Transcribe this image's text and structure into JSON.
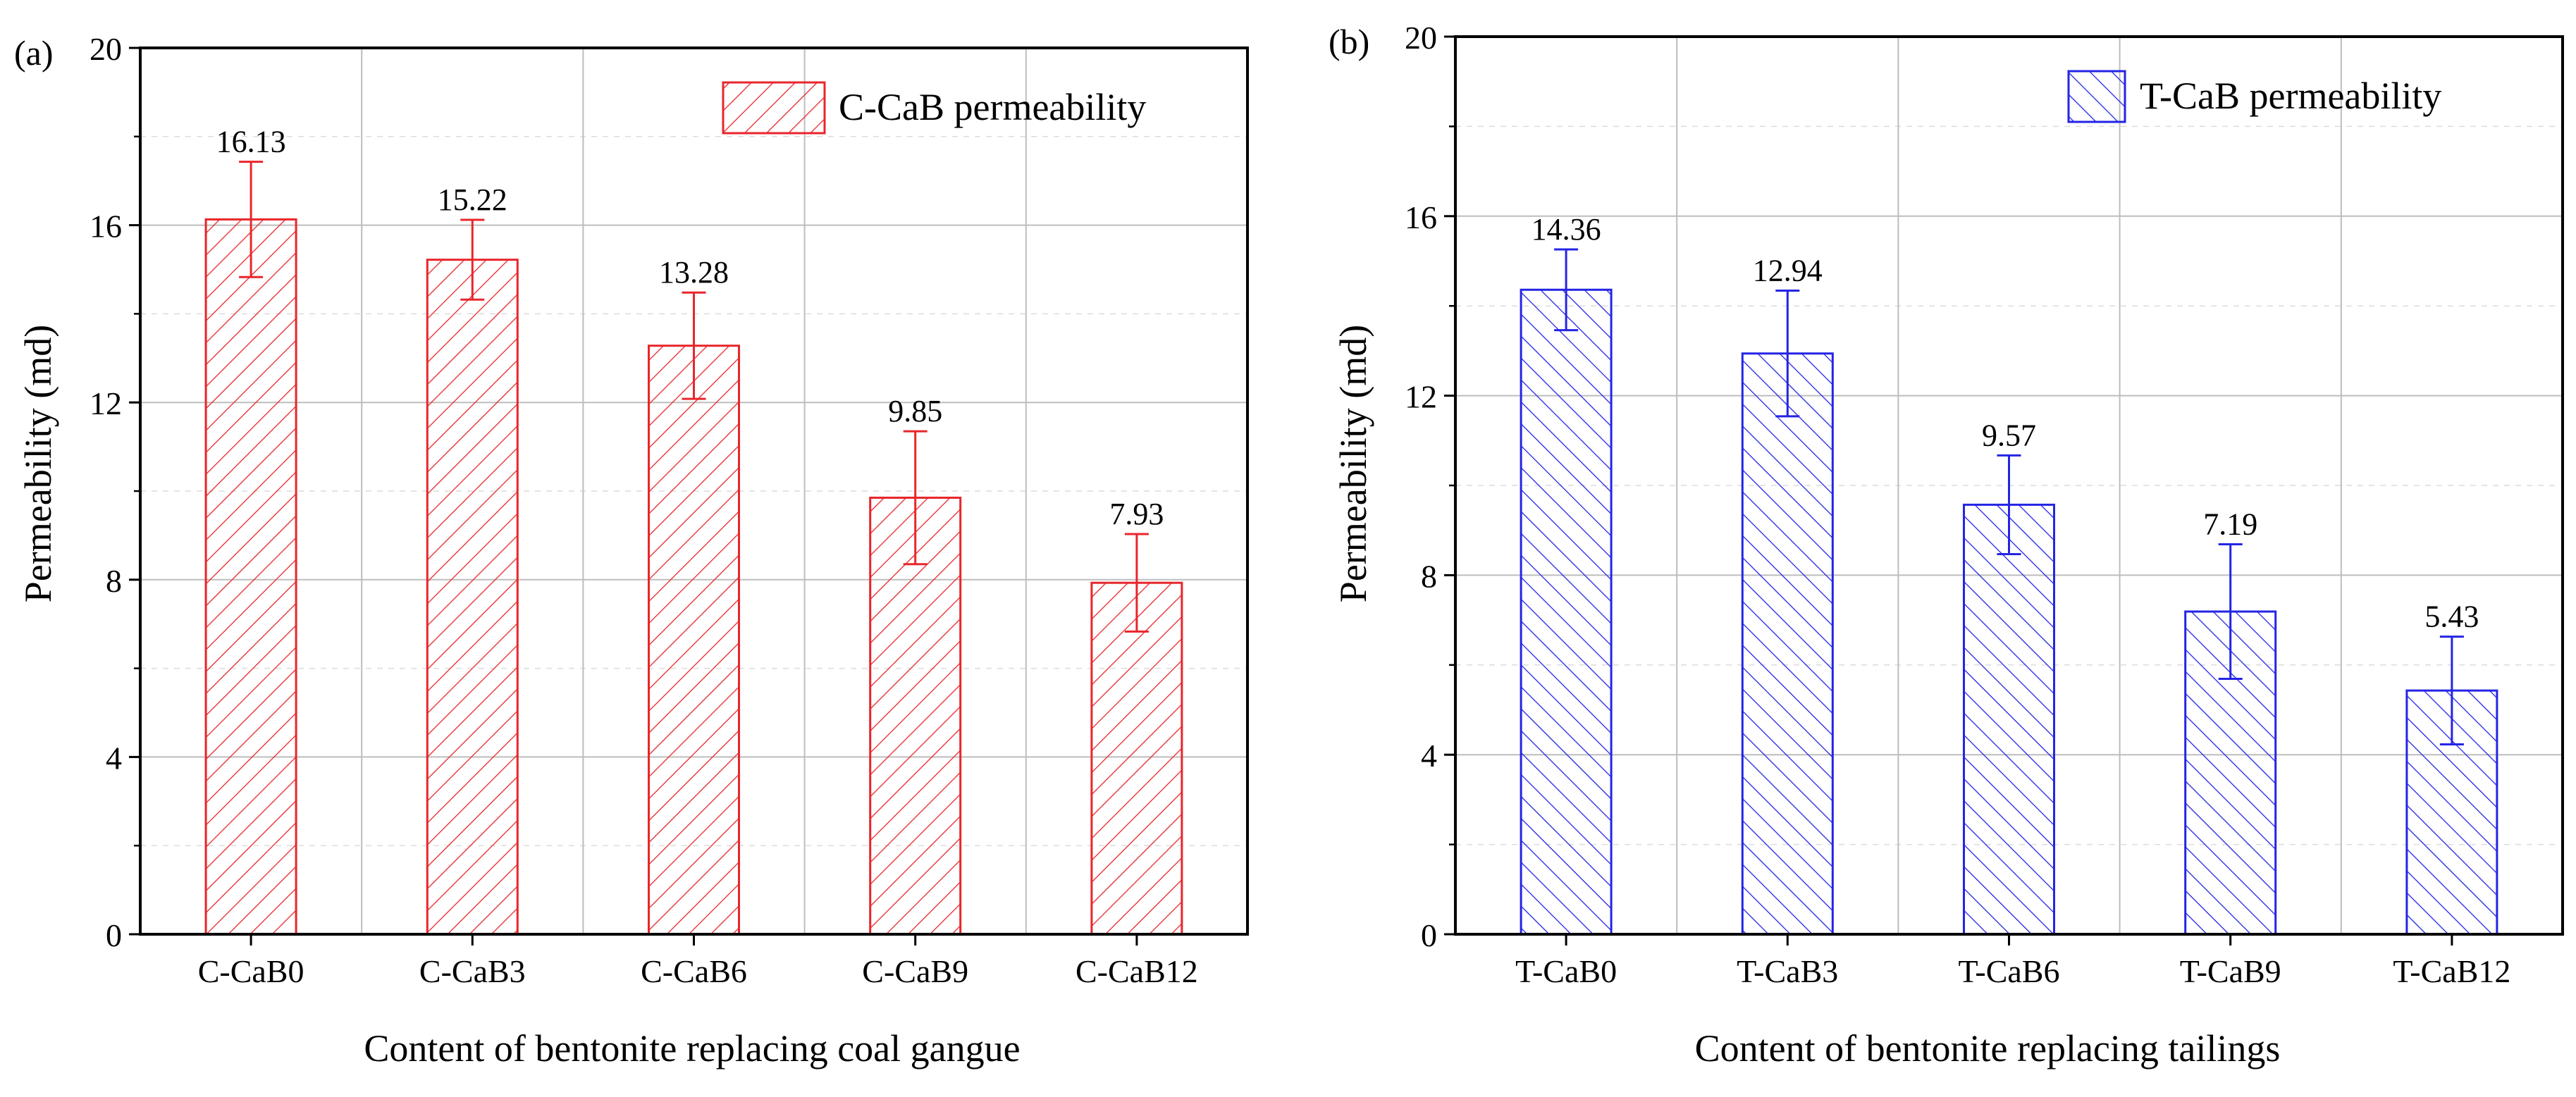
{
  "chart_data": [
    {
      "type": "bar",
      "panel_label": "(a)",
      "title": "",
      "xlabel": "Content of bentonite replacing coal gangue",
      "ylabel": "Permeability (md)",
      "ylim": [
        0,
        20
      ],
      "yticks": [
        0,
        4,
        8,
        12,
        16,
        20
      ],
      "grid": true,
      "legend_position": "top-right",
      "color": "#e8262b",
      "hatch": "forward-diagonal",
      "categories": [
        "C-CaB0",
        "C-CaB3",
        "C-CaB6",
        "C-CaB9",
        "C-CaB12"
      ],
      "series": [
        {
          "name": "C-CaB permeability",
          "values": [
            16.13,
            15.22,
            13.28,
            9.85,
            7.93
          ],
          "value_labels": [
            "16.13",
            "15.22",
            "13.28",
            "9.85",
            "7.93"
          ],
          "error": [
            1.3,
            0.9,
            1.2,
            1.5,
            1.1
          ]
        }
      ]
    },
    {
      "type": "bar",
      "panel_label": "(b)",
      "title": "",
      "xlabel": "Content of bentonite replacing tailings",
      "ylabel": "Permeability (md)",
      "ylim": [
        0,
        20
      ],
      "yticks": [
        0,
        4,
        8,
        12,
        16,
        20
      ],
      "grid": true,
      "legend_position": "top-right",
      "color": "#2424e6",
      "hatch": "backward-diagonal",
      "categories": [
        "T-CaB0",
        "T-CaB3",
        "T-CaB6",
        "T-CaB9",
        "T-CaB12"
      ],
      "series": [
        {
          "name": "T-CaB permeability",
          "values": [
            14.36,
            12.94,
            9.57,
            7.19,
            5.43
          ],
          "value_labels": [
            "14.36",
            "12.94",
            "9.57",
            "7.19",
            "5.43"
          ],
          "error": [
            0.9,
            1.4,
            1.1,
            1.5,
            1.2
          ]
        }
      ]
    }
  ]
}
